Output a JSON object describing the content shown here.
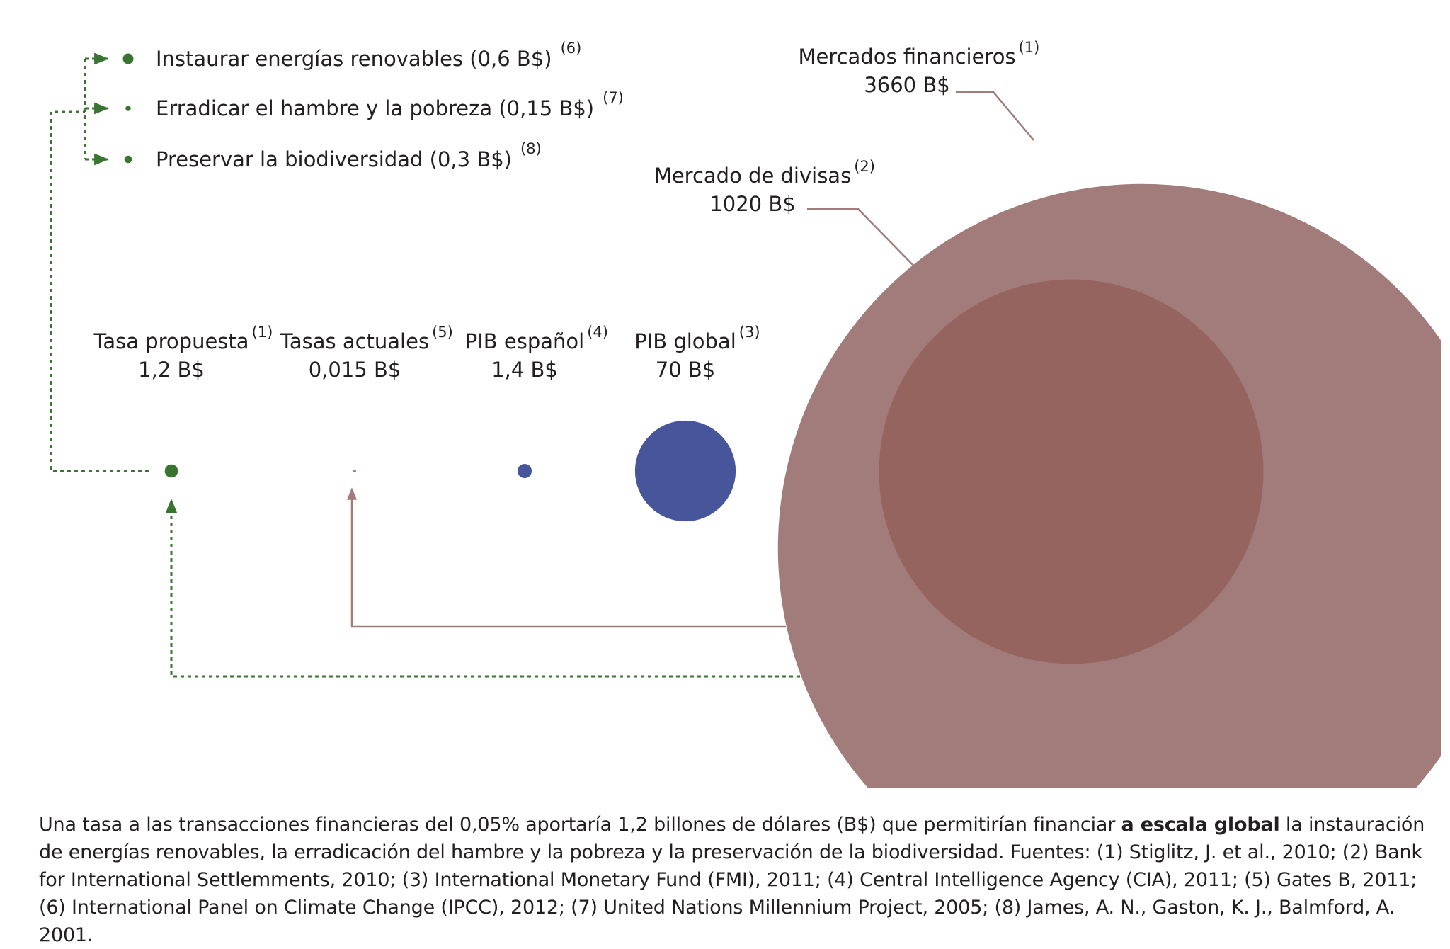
{
  "colors": {
    "green": "#3a7431",
    "blue": "#47569a",
    "mercados": "#a27c7b",
    "divisas": "#95645f",
    "leader": "#a27c7b",
    "text": "#231f20"
  },
  "chart_data": {
    "type": "bubble",
    "unit": "B$",
    "bubbles": [
      {
        "id": "tasa-propuesta",
        "label": "Tasa propuesta",
        "ref": "(1)",
        "value_text": "1,2 B$",
        "value": 1.2,
        "color": "green"
      },
      {
        "id": "tasas-actuales",
        "label": "Tasas actuales",
        "ref": "(5)",
        "value_text": "0,015 B$",
        "value": 0.015,
        "color": "leader"
      },
      {
        "id": "pib-espanol",
        "label": "PIB español",
        "ref": "(4)",
        "value_text": "1,4 B$",
        "value": 1.4,
        "color": "blue"
      },
      {
        "id": "pib-global",
        "label": "PIB global",
        "ref": "(3)",
        "value_text": "70 B$",
        "value": 70,
        "color": "blue"
      },
      {
        "id": "mercado-divisas",
        "label": "Mercado de divisas",
        "ref": "(2)",
        "value_text": "1020 B$",
        "value": 1020,
        "color": "divisas"
      },
      {
        "id": "mercados-financieros",
        "label": "Mercados financieros",
        "ref": "(1)",
        "value_text": "3660 B$",
        "value": 3660,
        "color": "mercados"
      }
    ],
    "uses": [
      {
        "id": "renovables",
        "label": "Instaurar energías renovables (0,6 B$)",
        "ref": "(6)",
        "value": 0.6
      },
      {
        "id": "hambre",
        "label": "Erradicar el hambre y la pobreza (0,15 B$)",
        "ref": "(7)",
        "value": 0.15
      },
      {
        "id": "biodiversidad",
        "label": "Preservar la biodiversidad (0,3 B$)",
        "ref": "(8)",
        "value": 0.3
      }
    ]
  },
  "caption": {
    "before": "Una tasa a las transacciones financieras del 0,05% aportaría 1,2 billones de dólares (B$) que permitirían financiar ",
    "bold": "a escala global",
    "after": " la instauración de energías renovables, la erradicación del hambre y la pobreza y la preservación de la biodiversidad. Fuentes: (1) Stiglitz, J. et al., 2010; (2) Bank for International Settlemments, 2010; (3) International Monetary Fund (FMI), 2011; (4) Central Intelligence Agency (CIA), 2011; (5) Gates B, 2011; (6) International Panel on Climate Change (IPCC), 2012; (7) United Nations Millennium Project, 2005; (8) James, A. N., Gaston, K. J., Balmford, A. 2001."
  }
}
